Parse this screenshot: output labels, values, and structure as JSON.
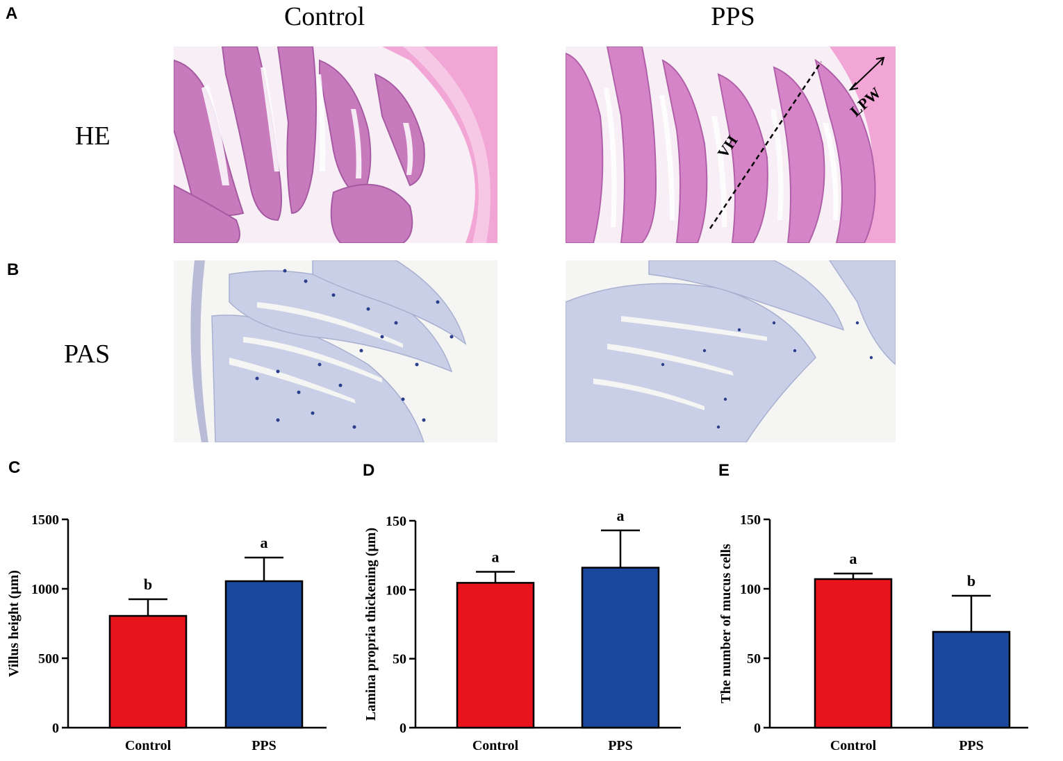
{
  "figure": {
    "panel_letters": [
      "A",
      "B",
      "C",
      "D",
      "E"
    ],
    "column_headers": [
      "Control",
      "PPS"
    ],
    "row_labels": [
      "HE",
      "PAS"
    ],
    "annotations": {
      "vh": "VH",
      "lpw": "LPW"
    },
    "colors": {
      "he_stain": "#e79ad2",
      "pas_stain": "#c9cfe6",
      "control_bar": "#e8141b",
      "pps_bar": "#1b479c"
    }
  },
  "chart_data": [
    {
      "type": "bar",
      "panel": "C",
      "categories": [
        "Control",
        "PPS"
      ],
      "values": [
        805,
        1055
      ],
      "errors": [
        120,
        170
      ],
      "significance": [
        "b",
        "a"
      ],
      "ylabel": "Villus height (μm)",
      "ylim": [
        0,
        1500
      ],
      "yticks": [
        0,
        500,
        1000,
        1500
      ],
      "colors": [
        "#e8141b",
        "#1b479c"
      ]
    },
    {
      "type": "bar",
      "panel": "D",
      "categories": [
        "Control",
        "PPS"
      ],
      "values": [
        105,
        116
      ],
      "errors": [
        8,
        27
      ],
      "significance": [
        "a",
        "a"
      ],
      "ylabel": "Lamina propria thickening (μm)",
      "ylim": [
        0,
        150
      ],
      "yticks": [
        0,
        50,
        100,
        150
      ],
      "colors": [
        "#e8141b",
        "#1b479c"
      ]
    },
    {
      "type": "bar",
      "panel": "E",
      "categories": [
        "Control",
        "PPS"
      ],
      "values": [
        107,
        69
      ],
      "errors": [
        4,
        26
      ],
      "significance": [
        "a",
        "b"
      ],
      "ylabel": "The number of mucus cells",
      "ylim": [
        0,
        150
      ],
      "yticks": [
        0,
        50,
        100,
        150
      ],
      "colors": [
        "#e8141b",
        "#1b479c"
      ]
    }
  ]
}
